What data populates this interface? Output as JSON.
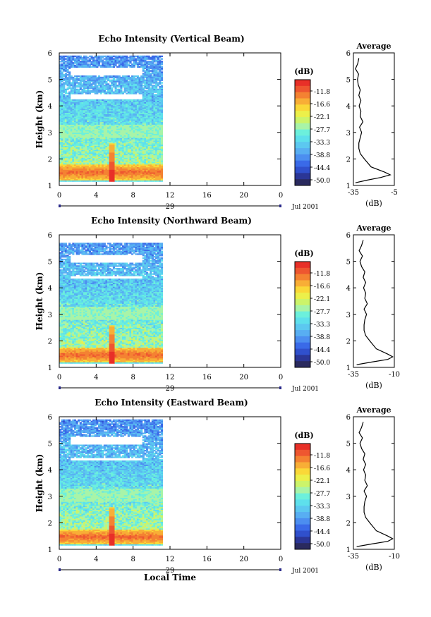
{
  "figure": {
    "month_label": "Jul 2001",
    "day_label": "29",
    "x_axis_title": "Local Time",
    "colorbar_unit": "(dB)",
    "colorbar_ticks": [
      "-11.8",
      "-16.6",
      "-22.1",
      "-27.7",
      "-33.3",
      "-38.8",
      "-44.4",
      "-50.0"
    ],
    "colorbar_colors": [
      "#2a2a5e",
      "#2b3696",
      "#3050cc",
      "#3a6ae8",
      "#4c8ef0",
      "#58aef2",
      "#5cc8f0",
      "#5ee0ec",
      "#6cf0dc",
      "#a8f4a8",
      "#ccf46a",
      "#ecf04a",
      "#fad838",
      "#f8ae36",
      "#f48232",
      "#ee5630",
      "#e83028"
    ],
    "average_title": "Average",
    "average_xlabel": "(dB)"
  },
  "chart_data": [
    {
      "type": "heatmap",
      "title": "Echo Intensity (Vertical Beam)",
      "xlabel": "",
      "ylabel": "Height (km)",
      "x_ticks": [
        "0",
        "4",
        "8",
        "12",
        "16",
        "20",
        "0"
      ],
      "xlim": [
        0,
        24
      ],
      "y_ticks": [
        "1",
        "2",
        "3",
        "4",
        "5",
        "6"
      ],
      "ylim": [
        1,
        6
      ],
      "data_x_range": [
        0,
        11.1
      ],
      "data_height_range": [
        1.15,
        5.85
      ],
      "gap_heights_km": [
        [
          5.15,
          5.45
        ],
        [
          4.25,
          4.45
        ]
      ],
      "peak_time": 5.7,
      "strong_layer_km": [
        1.2,
        1.8
      ],
      "average_profile": {
        "xlabel": "(dB)",
        "x_ticks": [
          "-35",
          "-5"
        ],
        "xlim": [
          -35,
          -5
        ],
        "ylim": [
          1,
          6
        ],
        "height_km": [
          1.1,
          1.2,
          1.3,
          1.4,
          1.5,
          1.7,
          2.0,
          2.2,
          2.4,
          2.6,
          2.8,
          3.0,
          3.2,
          3.4,
          3.6,
          3.8,
          4.0,
          4.2,
          4.4,
          4.6,
          4.8,
          5.0,
          5.2,
          5.4,
          5.6,
          5.8
        ],
        "db": [
          -33.5,
          -25,
          -15,
          -8,
          -12,
          -22,
          -27,
          -30,
          -31,
          -31,
          -30,
          -29,
          -30.5,
          -28,
          -30,
          -29.5,
          -30.8,
          -29.5,
          -31,
          -30,
          -31.5,
          -32,
          -31.2,
          -33.5,
          -31.8,
          -31
        ]
      }
    },
    {
      "type": "heatmap",
      "title": "Echo Intensity (Northward Beam)",
      "xlabel": "",
      "ylabel": "Height (km)",
      "x_ticks": [
        "0",
        "4",
        "8",
        "12",
        "16",
        "20",
        "0"
      ],
      "xlim": [
        0,
        24
      ],
      "y_ticks": [
        "1",
        "2",
        "3",
        "4",
        "5",
        "6"
      ],
      "ylim": [
        1,
        6
      ],
      "data_x_range": [
        0,
        11.1
      ],
      "data_height_range": [
        1.15,
        5.65
      ],
      "gap_heights_km": [
        [
          4.95,
          5.25
        ],
        [
          4.35,
          4.45
        ]
      ],
      "peak_time": 5.7,
      "strong_layer_km": [
        1.2,
        1.75
      ],
      "average_profile": {
        "xlabel": "(dB)",
        "x_ticks": [
          "-35",
          "-10"
        ],
        "xlim": [
          -35,
          -10
        ],
        "ylim": [
          1,
          6
        ],
        "height_km": [
          1.1,
          1.2,
          1.3,
          1.4,
          1.5,
          1.7,
          2.0,
          2.2,
          2.4,
          2.6,
          2.8,
          3.0,
          3.2,
          3.4,
          3.6,
          3.8,
          4.0,
          4.2,
          4.4,
          4.6,
          4.8,
          5.0,
          5.2,
          5.4,
          5.6,
          5.8
        ],
        "db": [
          -33,
          -24,
          -14,
          -11,
          -14,
          -21,
          -25,
          -27.5,
          -28.5,
          -28.5,
          -28,
          -27,
          -28.5,
          -26.5,
          -28,
          -27.5,
          -28.8,
          -27.5,
          -29,
          -28,
          -30,
          -31,
          -29.5,
          -31.5,
          -30,
          -29
        ]
      }
    },
    {
      "type": "heatmap",
      "title": "Echo Intensity (Eastward Beam)",
      "xlabel": "Local Time",
      "ylabel": "Height (km)",
      "x_ticks": [
        "0",
        "4",
        "8",
        "12",
        "16",
        "20",
        "0"
      ],
      "xlim": [
        0,
        24
      ],
      "y_ticks": [
        "1",
        "2",
        "3",
        "4",
        "5",
        "6"
      ],
      "ylim": [
        1,
        6
      ],
      "data_x_range": [
        0,
        11.1
      ],
      "data_height_range": [
        1.15,
        5.85
      ],
      "gap_heights_km": [
        [
          4.95,
          5.25
        ],
        [
          4.35,
          4.45
        ]
      ],
      "peak_time": 5.7,
      "strong_layer_km": [
        1.2,
        1.75
      ],
      "average_profile": {
        "xlabel": "(dB)",
        "x_ticks": [
          "-35",
          "-10"
        ],
        "xlim": [
          -35,
          -10
        ],
        "ylim": [
          1,
          6
        ],
        "height_km": [
          1.1,
          1.2,
          1.3,
          1.4,
          1.5,
          1.7,
          2.0,
          2.2,
          2.4,
          2.6,
          2.8,
          3.0,
          3.2,
          3.4,
          3.6,
          3.8,
          4.0,
          4.2,
          4.4,
          4.6,
          4.8,
          5.0,
          5.2,
          5.4,
          5.6,
          5.8
        ],
        "db": [
          -33,
          -24,
          -14,
          -11,
          -14,
          -21,
          -25,
          -27.5,
          -28.5,
          -28.5,
          -28,
          -27,
          -28.5,
          -26.5,
          -28,
          -27.5,
          -28.8,
          -27.5,
          -29,
          -28,
          -30,
          -31,
          -29.5,
          -31.5,
          -30,
          -29
        ]
      }
    }
  ]
}
